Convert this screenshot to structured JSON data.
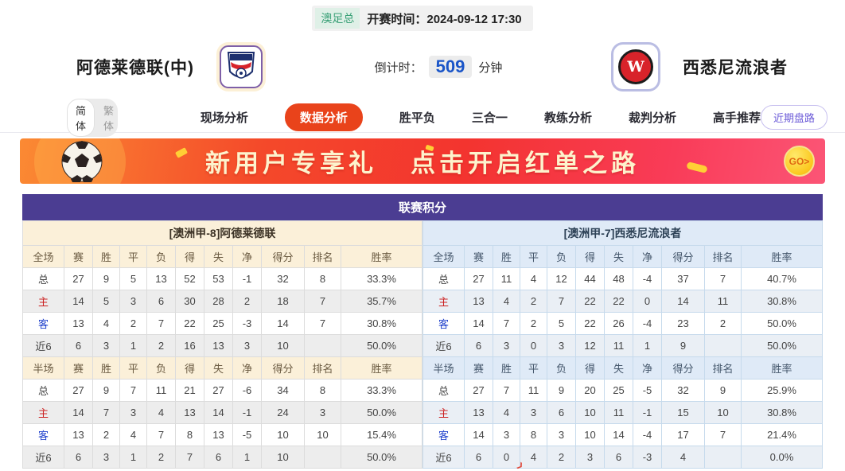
{
  "header": {
    "league_badge": "澳足总",
    "kickoff_label": "开赛时间：",
    "kickoff_time": "2024-09-12 17:30",
    "home_team": "阿德莱德联(中)",
    "away_team": "西悉尼流浪者",
    "countdown_label": "倒计时：",
    "countdown_value": "509",
    "countdown_unit": "分钟"
  },
  "nav": {
    "lang_simplified": "简体",
    "lang_traditional": "繁体",
    "tabs": [
      {
        "label": "现场分析",
        "active": false
      },
      {
        "label": "数据分析",
        "active": true
      },
      {
        "label": "胜平负",
        "active": false
      },
      {
        "label": "三合一",
        "active": false
      },
      {
        "label": "教练分析",
        "active": false
      },
      {
        "label": "裁判分析",
        "active": false
      },
      {
        "label": "高手推荐",
        "active": false
      }
    ],
    "recent_trends_button": "近期盘路"
  },
  "banner": {
    "text_left": "新用户专享礼",
    "text_right": "点击开启红单之路",
    "go_label": "GO>"
  },
  "table": {
    "title": "联赛积分",
    "home": {
      "subtitle": "[澳洲甲-8]阿德莱德联",
      "full_header": [
        "全场",
        "赛",
        "胜",
        "平",
        "负",
        "得",
        "失",
        "净",
        "得分",
        "排名",
        "胜率"
      ],
      "full_rows": [
        [
          "总",
          "27",
          "9",
          "5",
          "13",
          "52",
          "53",
          "-1",
          "32",
          "8",
          "33.3%"
        ],
        [
          "主",
          "14",
          "5",
          "3",
          "6",
          "30",
          "28",
          "2",
          "18",
          "7",
          "35.7%"
        ],
        [
          "客",
          "13",
          "4",
          "2",
          "7",
          "22",
          "25",
          "-3",
          "14",
          "7",
          "30.8%"
        ],
        [
          "近6",
          "6",
          "3",
          "1",
          "2",
          "16",
          "13",
          "3",
          "10",
          "",
          "50.0%"
        ]
      ],
      "half_header": [
        "半场",
        "赛",
        "胜",
        "平",
        "负",
        "得",
        "失",
        "净",
        "得分",
        "排名",
        "胜率"
      ],
      "half_rows": [
        [
          "总",
          "27",
          "9",
          "7",
          "11",
          "21",
          "27",
          "-6",
          "34",
          "8",
          "33.3%"
        ],
        [
          "主",
          "14",
          "7",
          "3",
          "4",
          "13",
          "14",
          "-1",
          "24",
          "3",
          "50.0%"
        ],
        [
          "客",
          "13",
          "2",
          "4",
          "7",
          "8",
          "13",
          "-5",
          "10",
          "10",
          "15.4%"
        ],
        [
          "近6",
          "6",
          "3",
          "1",
          "2",
          "7",
          "6",
          "1",
          "10",
          "",
          "50.0%"
        ]
      ]
    },
    "away": {
      "subtitle": "[澳洲甲-7]西悉尼流浪者",
      "full_header": [
        "全场",
        "赛",
        "胜",
        "平",
        "负",
        "得",
        "失",
        "净",
        "得分",
        "排名",
        "胜率"
      ],
      "full_rows": [
        [
          "总",
          "27",
          "11",
          "4",
          "12",
          "44",
          "48",
          "-4",
          "37",
          "7",
          "40.7%"
        ],
        [
          "主",
          "13",
          "4",
          "2",
          "7",
          "22",
          "22",
          "0",
          "14",
          "11",
          "30.8%"
        ],
        [
          "客",
          "14",
          "7",
          "2",
          "5",
          "22",
          "26",
          "-4",
          "23",
          "2",
          "50.0%"
        ],
        [
          "近6",
          "6",
          "3",
          "0",
          "3",
          "12",
          "11",
          "1",
          "9",
          "",
          "50.0%"
        ]
      ],
      "half_header": [
        "半场",
        "赛",
        "胜",
        "平",
        "负",
        "得",
        "失",
        "净",
        "得分",
        "排名",
        "胜率"
      ],
      "half_rows": [
        [
          "总",
          "27",
          "7",
          "11",
          "9",
          "20",
          "25",
          "-5",
          "32",
          "9",
          "25.9%"
        ],
        [
          "主",
          "13",
          "4",
          "3",
          "6",
          "10",
          "11",
          "-1",
          "15",
          "10",
          "30.8%"
        ],
        [
          "客",
          "14",
          "3",
          "8",
          "3",
          "10",
          "14",
          "-4",
          "17",
          "7",
          "21.4%"
        ],
        [
          "近6",
          "6",
          "0",
          "4",
          "2",
          "3",
          "6",
          "-3",
          "4",
          "",
          "0.0%"
        ]
      ]
    }
  },
  "colors": {
    "accent_red": "#e9431b",
    "table_header_purple": "#4b3d92",
    "home_panel": "#fbf0d9",
    "away_panel": "#dfeaf7",
    "countdown_blue": "#1a55c8",
    "badge_green": "#3aa077"
  }
}
